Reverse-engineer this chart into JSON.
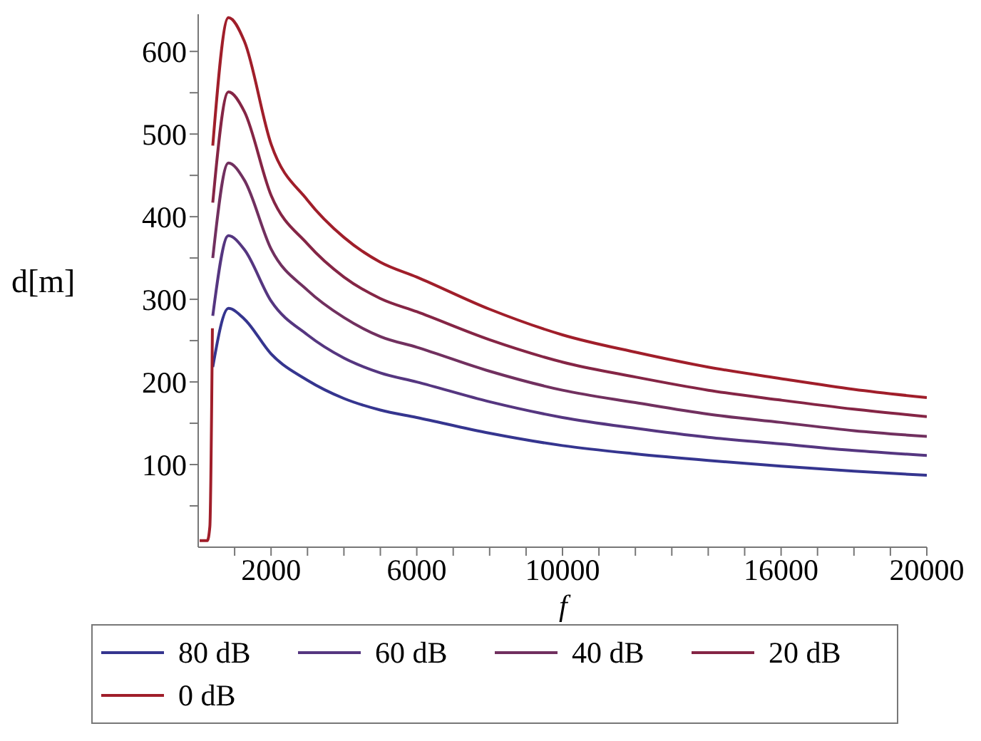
{
  "chart_data": {
    "type": "line",
    "xlabel": "f",
    "ylabel": "d[m]",
    "xlim": [
      0,
      20000
    ],
    "xticks": [
      {
        "value": 1000,
        "label": null
      },
      2000,
      {
        "value": 3000,
        "label": null
      },
      {
        "value": 4000,
        "label": null
      },
      {
        "value": 5000,
        "label": null
      },
      6000,
      {
        "value": 7000,
        "label": null
      },
      {
        "value": 8000,
        "label": null
      },
      {
        "value": 9000,
        "label": null
      },
      10000,
      {
        "value": 11000,
        "label": null
      },
      {
        "value": 12000,
        "label": null
      },
      {
        "value": 13000,
        "label": null
      },
      {
        "value": 14000,
        "label": null
      },
      {
        "value": 15000,
        "label": null
      },
      16000,
      {
        "value": 17000,
        "label": null
      },
      {
        "value": 18000,
        "label": null
      },
      {
        "value": 19000,
        "label": null
      },
      20000
    ],
    "ylim": [
      0,
      645
    ],
    "yticks": [
      {
        "value": 50,
        "label": null
      },
      100,
      {
        "value": 150,
        "label": null
      },
      200,
      {
        "value": 250,
        "label": null
      },
      300,
      {
        "value": 350,
        "label": null
      },
      400,
      {
        "value": 450,
        "label": null
      },
      500,
      {
        "value": 550,
        "label": null
      },
      600
    ],
    "x": [
      40,
      250,
      320,
      390,
      395,
      400,
      830,
      1270,
      2000,
      3000,
      4000,
      5000,
      6000,
      8000,
      10000,
      12000,
      14000,
      16000,
      18000,
      20000
    ],
    "series": [
      {
        "name": "80 dB",
        "color": "#35358f",
        "values": [
          null,
          null,
          null,
          null,
          null,
          218,
          289,
          276,
          234,
          202,
          180,
          166,
          157,
          138,
          123,
          113,
          105,
          98,
          92,
          87
        ]
      },
      {
        "name": "60 dB",
        "color": "#553680",
        "values": [
          null,
          null,
          null,
          null,
          null,
          280,
          377,
          360,
          298,
          257,
          229,
          211,
          200,
          176,
          157,
          144,
          133,
          125,
          117,
          111
        ]
      },
      {
        "name": "40 dB",
        "color": "#71305f",
        "values": [
          null,
          null,
          null,
          null,
          null,
          350,
          465,
          444,
          361,
          311,
          278,
          255,
          242,
          213,
          190,
          175,
          161,
          151,
          141,
          134
        ]
      },
      {
        "name": "20 dB",
        "color": "#852545",
        "values": [
          null,
          null,
          null,
          null,
          null,
          417,
          551,
          527,
          426,
          367,
          327,
          301,
          285,
          251,
          224,
          206,
          190,
          178,
          167,
          158
        ]
      },
      {
        "name": "0 dB",
        "color": "#a01e2a",
        "values": [
          8,
          8,
          25,
          265,
          null,
          486,
          641,
          612,
          488,
          420,
          375,
          345,
          327,
          288,
          257,
          236,
          218,
          204,
          191,
          181
        ]
      }
    ],
    "legend": "bottom",
    "grid": false,
    "marker": "none",
    "line_style": "solid"
  }
}
